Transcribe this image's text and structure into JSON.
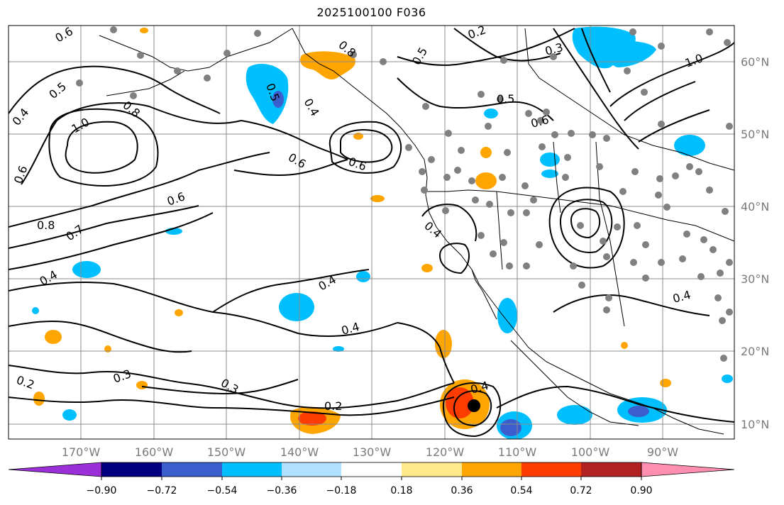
{
  "title": "2025100100 F036",
  "map": {
    "lon_labels": [
      "170°W",
      "160°W",
      "150°W",
      "140°W",
      "130°W",
      "120°W",
      "110°W",
      "100°W",
      "90°W"
    ],
    "lat_labels": [
      "60°N",
      "50°N",
      "40°N",
      "30°N",
      "20°N",
      "10°N"
    ],
    "contour_labels": [
      "0.6",
      "0.5",
      "0.4",
      "1.0",
      "0.8",
      "0.6",
      "0.6",
      "0.8",
      "0.7",
      "0.4",
      "0.5",
      "0.4",
      "0.6",
      "0.6",
      "0.8",
      "0.2",
      "0.3",
      "0.5",
      "0.6",
      "1.0",
      "0.5",
      "0.4",
      "0.4",
      "0.4",
      "0.3",
      "0.2",
      "0.3",
      "0.2",
      "0.4",
      "0.4"
    ],
    "colors": {
      "land_outline": "#000000",
      "grid": "#8c8c8c",
      "station_dot": "#808080",
      "cyclone_marker": "#000000"
    }
  },
  "colorbar": {
    "tick_labels": [
      "−0.90",
      "−0.72",
      "−0.54",
      "−0.36",
      "−0.18",
      "0.18",
      "0.36",
      "0.54",
      "0.72",
      "0.90"
    ],
    "colors": [
      "#9b30d9",
      "#000080",
      "#3a5fcd",
      "#00bfff",
      "#b0e2ff",
      "#ffffff",
      "#ffe98a",
      "#ffa500",
      "#ff3c00",
      "#b22222",
      "#ff8fb0"
    ]
  }
}
